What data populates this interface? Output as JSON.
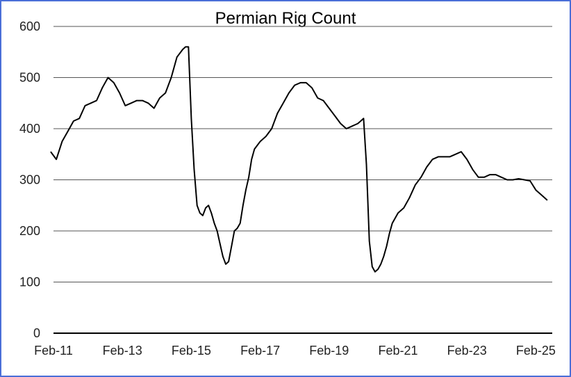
{
  "chart_data": {
    "type": "line",
    "title": "Permian Rig Count",
    "xlabel": "",
    "ylabel": "",
    "ylim": [
      0,
      600
    ],
    "yticks": [
      "0",
      "100",
      "200",
      "300",
      "400",
      "500",
      "600"
    ],
    "x_tick_labels": [
      "Feb-11",
      "Feb-13",
      "Feb-15",
      "Feb-17",
      "Feb-19",
      "Feb-21",
      "Feb-23",
      "Feb-25"
    ],
    "x_tick_dates": [
      "2011-02",
      "2013-02",
      "2015-02",
      "2017-02",
      "2019-02",
      "2021-02",
      "2023-02",
      "2025-02"
    ],
    "grid": true,
    "legend": "none",
    "colors": {
      "line": "#000000",
      "grid": "#555555",
      "frame": "#4a6fd8"
    },
    "series": [
      {
        "x": [
          "2011-01",
          "2011-03",
          "2011-05",
          "2011-07",
          "2011-09",
          "2011-11",
          "2012-01",
          "2012-03",
          "2012-05",
          "2012-07",
          "2012-09",
          "2012-11",
          "2013-01",
          "2013-03",
          "2013-05",
          "2013-07",
          "2013-09",
          "2013-11",
          "2014-01",
          "2014-03",
          "2014-05",
          "2014-07",
          "2014-09",
          "2014-11",
          "2014-12",
          "2015-01",
          "2015-02",
          "2015-03",
          "2015-04",
          "2015-05",
          "2015-06",
          "2015-07",
          "2015-08",
          "2015-09",
          "2015-10",
          "2015-11",
          "2015-12",
          "2016-01",
          "2016-02",
          "2016-03",
          "2016-04",
          "2016-05",
          "2016-06",
          "2016-07",
          "2016-08",
          "2016-09",
          "2016-10",
          "2016-11",
          "2016-12",
          "2017-02",
          "2017-04",
          "2017-06",
          "2017-08",
          "2017-10",
          "2017-12",
          "2018-02",
          "2018-04",
          "2018-06",
          "2018-08",
          "2018-10",
          "2018-12",
          "2019-02",
          "2019-04",
          "2019-06",
          "2019-08",
          "2019-10",
          "2019-12",
          "2020-01",
          "2020-02",
          "2020-03",
          "2020-04",
          "2020-05",
          "2020-06",
          "2020-07",
          "2020-08",
          "2020-09",
          "2020-10",
          "2020-11",
          "2020-12",
          "2021-02",
          "2021-04",
          "2021-06",
          "2021-08",
          "2021-10",
          "2021-12",
          "2022-02",
          "2022-04",
          "2022-06",
          "2022-08",
          "2022-10",
          "2022-12",
          "2023-02",
          "2023-04",
          "2023-06",
          "2023-08",
          "2023-10",
          "2023-12",
          "2024-02",
          "2024-04",
          "2024-06",
          "2024-08",
          "2024-10",
          "2024-12",
          "2025-02",
          "2025-04",
          "2025-06"
        ],
        "y": [
          355,
          340,
          375,
          395,
          415,
          420,
          445,
          450,
          455,
          480,
          500,
          490,
          470,
          445,
          450,
          455,
          455,
          450,
          440,
          460,
          470,
          500,
          540,
          555,
          560,
          560,
          420,
          320,
          250,
          235,
          230,
          245,
          250,
          235,
          215,
          200,
          175,
          150,
          135,
          140,
          170,
          200,
          205,
          215,
          250,
          280,
          305,
          340,
          360,
          375,
          385,
          400,
          430,
          450,
          470,
          485,
          490,
          490,
          480,
          460,
          455,
          440,
          425,
          410,
          400,
          405,
          410,
          415,
          420,
          330,
          180,
          130,
          120,
          125,
          135,
          150,
          170,
          195,
          215,
          235,
          245,
          265,
          290,
          305,
          325,
          340,
          345,
          345,
          345,
          350,
          355,
          340,
          320,
          305,
          305,
          310,
          310,
          305,
          300,
          300,
          302,
          300,
          298,
          280,
          270,
          260
        ]
      }
    ]
  }
}
